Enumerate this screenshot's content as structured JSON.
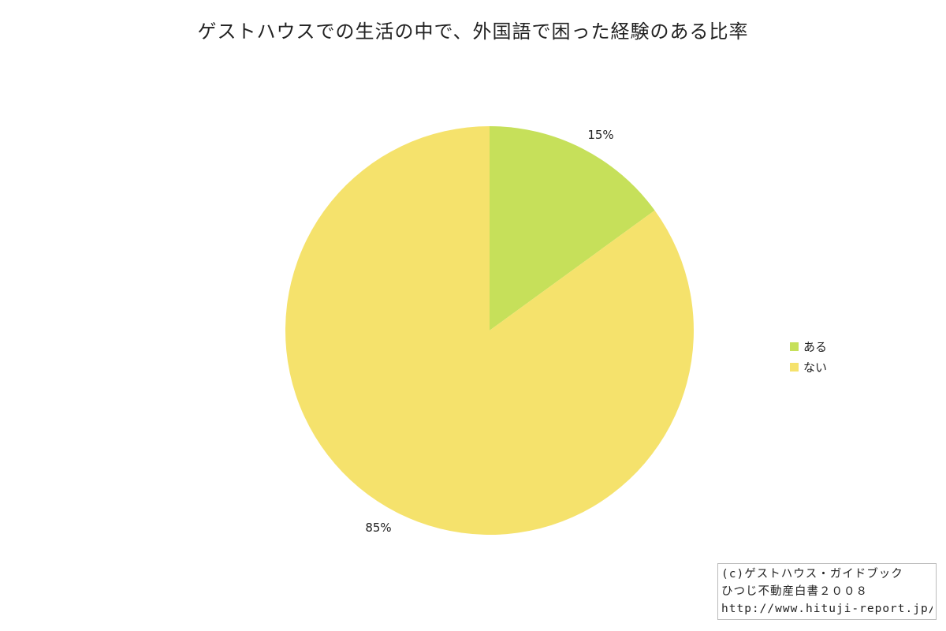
{
  "chart_data": {
    "type": "pie",
    "title": "ゲストハウスでの生活の中で、外国語で困った経験のある比率",
    "categories": [
      "ある",
      "ない"
    ],
    "values": [
      15,
      85
    ],
    "labels": [
      "15%",
      "85%"
    ],
    "colors": [
      "#c6e05a",
      "#f5e26c"
    ],
    "legend_position": "right"
  },
  "credit": {
    "line1": "(c)ゲストハウス・ガイドブック",
    "line2": "ひつじ不動産白書２００８",
    "line3": "http://www.hituji-report.jp/"
  }
}
